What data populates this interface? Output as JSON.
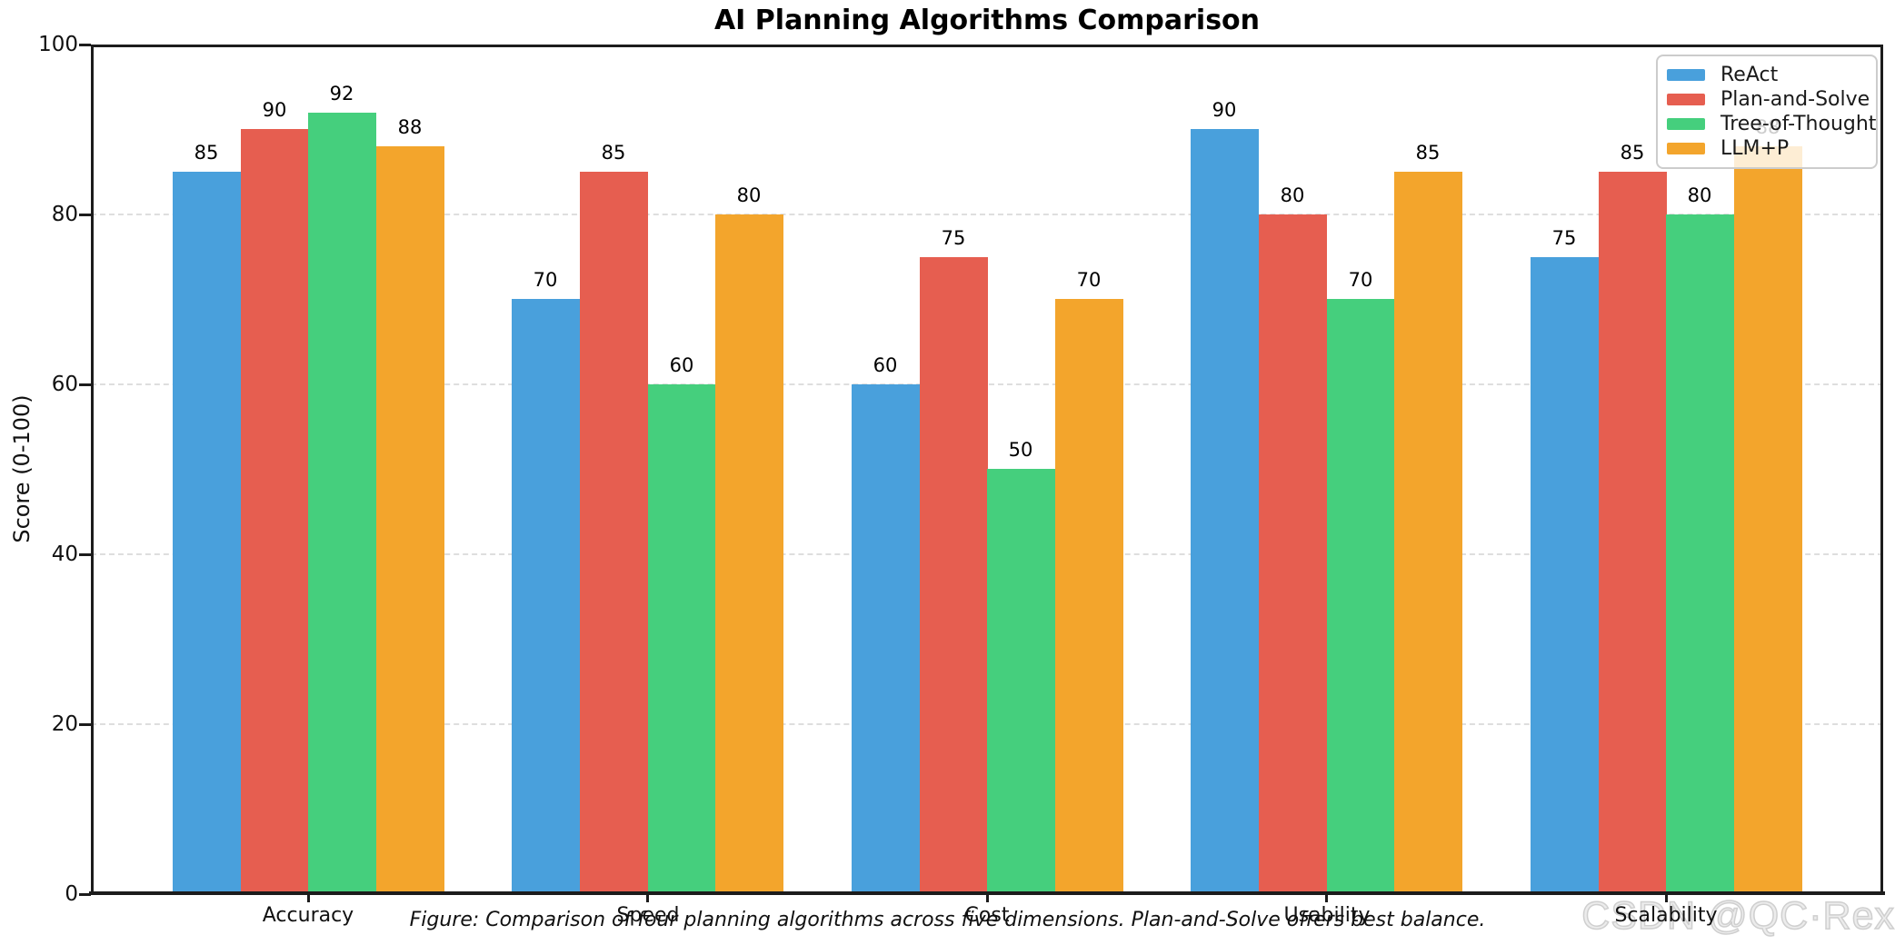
{
  "page": {
    "caption": "Figure: Comparison of four planning algorithms across five dimensions. Plan-and-Solve offers best balance.",
    "watermark": "CSDN @QC·Rex"
  },
  "chart_data": {
    "type": "bar",
    "title": "AI Planning Algorithms Comparison",
    "xlabel": "",
    "ylabel": "Score (0-100)",
    "categories": [
      "Accuracy",
      "Speed",
      "Cost",
      "Usability",
      "Scalability"
    ],
    "series": [
      {
        "name": "ReAct",
        "color": "#49A0DC",
        "values": [
          85,
          70,
          60,
          90,
          75
        ]
      },
      {
        "name": "Plan-and-Solve",
        "color": "#E65E50",
        "values": [
          90,
          85,
          75,
          80,
          85
        ]
      },
      {
        "name": "Tree-of-Thought",
        "color": "#45CF7D",
        "values": [
          92,
          60,
          50,
          70,
          80
        ]
      },
      {
        "name": "LLM+P",
        "color": "#F3A52C",
        "values": [
          88,
          80,
          70,
          85,
          88
        ]
      }
    ],
    "ylim": [
      0,
      100
    ],
    "yticks": [
      0,
      20,
      40,
      60,
      80,
      100
    ],
    "grid": "horizontal-dashed",
    "bar_value_labels": true,
    "legend_position": "upper-right",
    "colors": {
      "axis": "#1c1c1c",
      "grid": "#dedede",
      "legend_border": "#cccccc",
      "watermark_outline": "#cfcfcf"
    }
  }
}
